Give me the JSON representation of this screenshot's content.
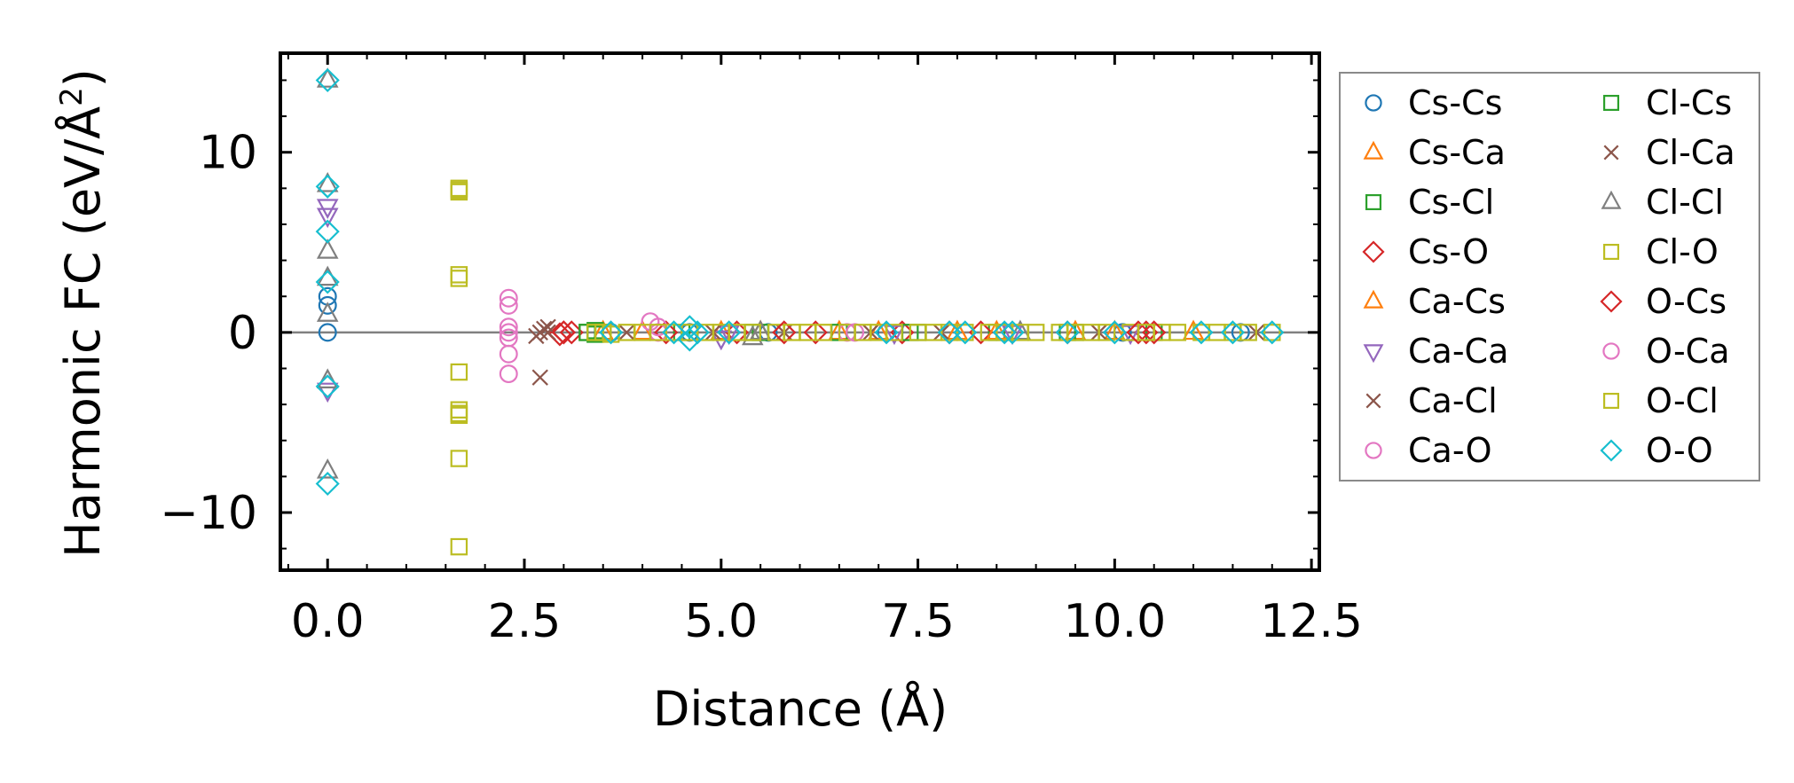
{
  "chart_data": {
    "type": "scatter",
    "xlabel": "Distance (Å)",
    "ylabel_main": "Harmonic FC (eV/Å",
    "ylabel_sup": "2",
    "ylabel_close": ")",
    "xlim": [
      -0.6,
      12.6
    ],
    "ylim": [
      -13.2,
      15.5
    ],
    "x_ticks": [
      0.0,
      2.5,
      5.0,
      7.5,
      10.0,
      12.5
    ],
    "x_tick_labels": [
      "0.0",
      "2.5",
      "5.0",
      "7.5",
      "10.0",
      "12.5"
    ],
    "y_ticks": [
      -10,
      0,
      10
    ],
    "y_tick_labels": [
      "−10",
      "0",
      "10"
    ],
    "zero_line": true,
    "legend_position": "right",
    "series": [
      {
        "name": "Cs-Cs",
        "marker": "circle",
        "color": "#1f77b4",
        "points": [
          [
            0,
            2.0
          ],
          [
            0,
            1.5
          ],
          [
            0,
            0.0
          ],
          [
            3.6,
            0.0
          ],
          [
            4.6,
            0.0
          ],
          [
            5.6,
            0.0
          ],
          [
            7.1,
            0.0
          ],
          [
            8.6,
            0.0
          ],
          [
            10.1,
            0.0
          ],
          [
            11.6,
            0.0
          ]
        ]
      },
      {
        "name": "Cs-Ca",
        "marker": "triangle-up",
        "color": "#ff7f0e",
        "points": [
          [
            3.5,
            0.0
          ],
          [
            5.0,
            0.0
          ],
          [
            6.5,
            0.0
          ],
          [
            8.0,
            0.0
          ],
          [
            9.5,
            0.0
          ],
          [
            11.0,
            0.0
          ]
        ]
      },
      {
        "name": "Cs-Cl",
        "marker": "square",
        "color": "#2ca02c",
        "points": [
          [
            3.3,
            0.0
          ],
          [
            3.4,
            0.1
          ],
          [
            3.5,
            0.0
          ],
          [
            4.5,
            0.0
          ],
          [
            5.5,
            0.0
          ],
          [
            6.5,
            0.0
          ],
          [
            7.5,
            0.0
          ],
          [
            8.5,
            0.0
          ],
          [
            9.5,
            0.0
          ],
          [
            10.5,
            0.0
          ]
        ]
      },
      {
        "name": "Cs-O",
        "marker": "diamond",
        "color": "#d62728",
        "points": [
          [
            3.0,
            0.0
          ],
          [
            3.1,
            0.0
          ],
          [
            2.95,
            -0.1
          ],
          [
            4.3,
            0.0
          ],
          [
            5.2,
            0.0
          ],
          [
            6.2,
            0.0
          ],
          [
            7.3,
            0.0
          ],
          [
            8.3,
            0.0
          ],
          [
            9.4,
            0.0
          ],
          [
            10.4,
            0.0
          ]
        ]
      },
      {
        "name": "Ca-Cs",
        "marker": "triangle-up",
        "color": "#ff7f0e",
        "points": [
          [
            4.0,
            0.0
          ],
          [
            5.5,
            0.0
          ],
          [
            7.0,
            0.0
          ],
          [
            8.5,
            0.0
          ],
          [
            10.0,
            0.0
          ]
        ]
      },
      {
        "name": "Ca-Ca",
        "marker": "triangle-down",
        "color": "#9467bd",
        "points": [
          [
            0,
            7.0
          ],
          [
            0,
            6.5
          ],
          [
            0,
            -3.2
          ],
          [
            5.0,
            -0.3
          ],
          [
            5.1,
            0.0
          ],
          [
            7.2,
            0.0
          ],
          [
            8.7,
            0.0
          ],
          [
            10.2,
            0.0
          ]
        ]
      },
      {
        "name": "Ca-Cl",
        "marker": "x",
        "color": "#8c564b",
        "points": [
          [
            2.7,
            -2.5
          ],
          [
            2.7,
            0.0
          ],
          [
            2.75,
            0.2
          ],
          [
            2.65,
            -0.2
          ],
          [
            3.8,
            0.0
          ],
          [
            5.8,
            0.0
          ],
          [
            7.8,
            0.0
          ],
          [
            9.8,
            0.0
          ],
          [
            11.8,
            0.0
          ]
        ]
      },
      {
        "name": "Ca-O",
        "marker": "circle",
        "color": "#e377c2",
        "points": [
          [
            2.3,
            1.9
          ],
          [
            2.3,
            1.5
          ],
          [
            2.3,
            0.3
          ],
          [
            2.3,
            -0.3
          ],
          [
            2.3,
            -1.2
          ],
          [
            2.3,
            -2.3
          ],
          [
            4.1,
            0.6
          ],
          [
            4.2,
            0.0
          ],
          [
            6.6,
            0.0
          ]
        ]
      },
      {
        "name": "Cl-Cs",
        "marker": "square",
        "color": "#2ca02c",
        "points": [
          [
            3.3,
            0.0
          ],
          [
            3.4,
            -0.1
          ],
          [
            5.4,
            0.0
          ],
          [
            7.4,
            0.0
          ],
          [
            9.4,
            0.0
          ]
        ]
      },
      {
        "name": "Cl-Ca",
        "marker": "x",
        "color": "#8c564b",
        "points": [
          [
            2.8,
            0.0
          ],
          [
            2.8,
            0.3
          ],
          [
            4.9,
            0.0
          ],
          [
            6.9,
            0.0
          ]
        ]
      },
      {
        "name": "Cl-Cl",
        "marker": "triangle-up",
        "color": "#7f7f7f",
        "points": [
          [
            0,
            14.0
          ],
          [
            0,
            8.2
          ],
          [
            0,
            4.5
          ],
          [
            0,
            3.0
          ],
          [
            0,
            1.0
          ],
          [
            0,
            -2.7
          ],
          [
            0,
            -7.7
          ],
          [
            5.4,
            -0.3
          ],
          [
            5.5,
            0.0
          ],
          [
            8.8,
            0.0
          ]
        ]
      },
      {
        "name": "Cl-O",
        "marker": "square",
        "color": "#bcbd22",
        "points": [
          [
            1.67,
            8.0
          ],
          [
            1.67,
            7.8
          ],
          [
            1.67,
            3.2
          ],
          [
            1.67,
            3.0
          ],
          [
            1.67,
            -2.2
          ],
          [
            1.67,
            -4.3
          ],
          [
            1.67,
            -4.6
          ],
          [
            1.67,
            -7.0
          ],
          [
            1.67,
            -11.9
          ],
          [
            3.4,
            0.0
          ],
          [
            3.6,
            -0.1
          ],
          [
            4.0,
            0.0
          ],
          [
            4.4,
            0.0
          ],
          [
            4.8,
            0.0
          ],
          [
            5.2,
            0.0
          ],
          [
            5.7,
            0.0
          ],
          [
            6.1,
            0.0
          ],
          [
            6.6,
            0.0
          ],
          [
            7.0,
            0.0
          ],
          [
            7.5,
            0.0
          ],
          [
            7.9,
            0.0
          ],
          [
            8.4,
            0.0
          ],
          [
            8.8,
            0.0
          ],
          [
            9.3,
            0.0
          ],
          [
            9.7,
            0.0
          ],
          [
            10.2,
            0.0
          ],
          [
            10.6,
            0.0
          ],
          [
            11.1,
            0.0
          ],
          [
            11.5,
            0.0
          ],
          [
            12.0,
            0.0
          ]
        ]
      },
      {
        "name": "O-Cs",
        "marker": "diamond",
        "color": "#d62728",
        "points": [
          [
            3.0,
            0.0
          ],
          [
            5.8,
            0.0
          ],
          [
            7.9,
            0.0
          ],
          [
            10.3,
            0.0
          ],
          [
            10.5,
            0.0
          ]
        ]
      },
      {
        "name": "O-Ca",
        "marker": "circle",
        "color": "#e377c2",
        "points": [
          [
            2.3,
            0.0
          ],
          [
            4.2,
            0.3
          ],
          [
            6.7,
            0.0
          ]
        ]
      },
      {
        "name": "O-Cl",
        "marker": "square",
        "color": "#bcbd22",
        "points": [
          [
            1.67,
            7.9
          ],
          [
            1.67,
            -4.5
          ],
          [
            3.5,
            0.0
          ],
          [
            3.8,
            0.0
          ],
          [
            4.2,
            0.0
          ],
          [
            4.6,
            0.0
          ],
          [
            5.0,
            0.0
          ],
          [
            5.4,
            0.0
          ],
          [
            5.9,
            0.0
          ],
          [
            6.3,
            0.0
          ],
          [
            6.8,
            0.0
          ],
          [
            7.2,
            0.0
          ],
          [
            7.7,
            0.0
          ],
          [
            8.1,
            0.0
          ],
          [
            8.6,
            0.0
          ],
          [
            9.0,
            0.0
          ],
          [
            9.5,
            0.0
          ],
          [
            9.9,
            0.0
          ],
          [
            10.4,
            0.0
          ],
          [
            10.8,
            0.0
          ],
          [
            11.3,
            0.0
          ],
          [
            11.7,
            0.0
          ]
        ]
      },
      {
        "name": "O-O",
        "marker": "diamond",
        "color": "#17becf",
        "points": [
          [
            0,
            14.0
          ],
          [
            0,
            8.1
          ],
          [
            0,
            5.6
          ],
          [
            0,
            2.8
          ],
          [
            0,
            -3.0
          ],
          [
            0,
            -8.4
          ],
          [
            3.6,
            0.0
          ],
          [
            4.4,
            0.0
          ],
          [
            4.6,
            0.3
          ],
          [
            4.6,
            -0.4
          ],
          [
            4.7,
            0.0
          ],
          [
            5.1,
            0.0
          ],
          [
            7.1,
            0.0
          ],
          [
            7.9,
            0.0
          ],
          [
            8.1,
            0.0
          ],
          [
            8.6,
            0.0
          ],
          [
            8.7,
            0.0
          ],
          [
            9.4,
            0.0
          ],
          [
            10.0,
            0.0
          ],
          [
            11.1,
            0.0
          ],
          [
            11.5,
            0.0
          ],
          [
            12.0,
            0.0
          ]
        ]
      }
    ]
  }
}
